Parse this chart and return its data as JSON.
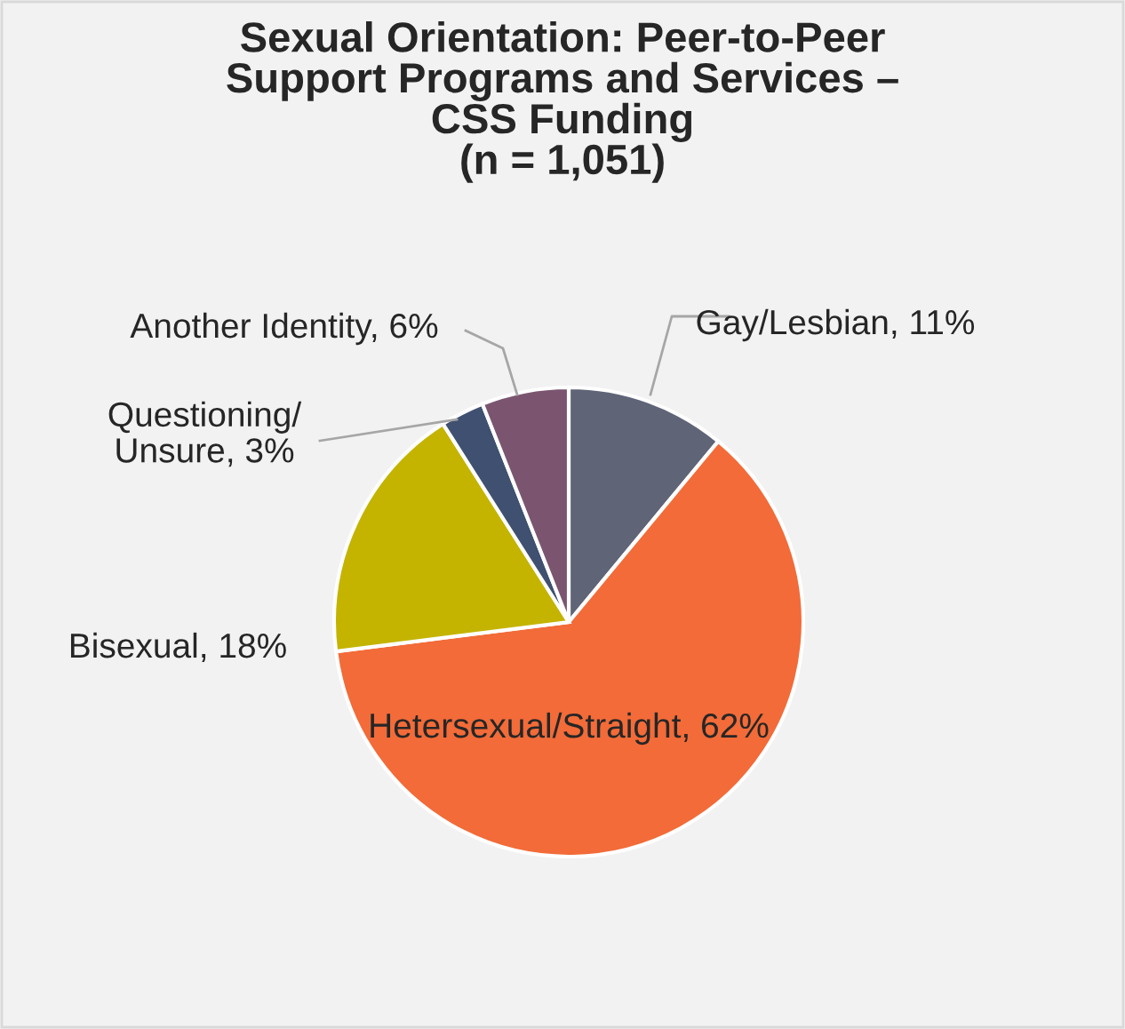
{
  "chart_data": {
    "type": "pie",
    "title": "Sexual Orientation: Peer-to-Peer\nSupport Programs and Services –\nCSS Funding\n(n = 1,051)",
    "categories": [
      "Gay/Lesbian",
      "Hetersexual/Straight",
      "Bisexual",
      "Questioning/\nUnsure",
      "Another Identity"
    ],
    "values": [
      11,
      62,
      18,
      3,
      6
    ],
    "value_labels": [
      "11%",
      "62%",
      "18%",
      "3%",
      "6%"
    ],
    "colors": [
      "#5f6477",
      "#f26b38",
      "#c4b400",
      "#3f5070",
      "#7b5570"
    ],
    "legend": false
  }
}
